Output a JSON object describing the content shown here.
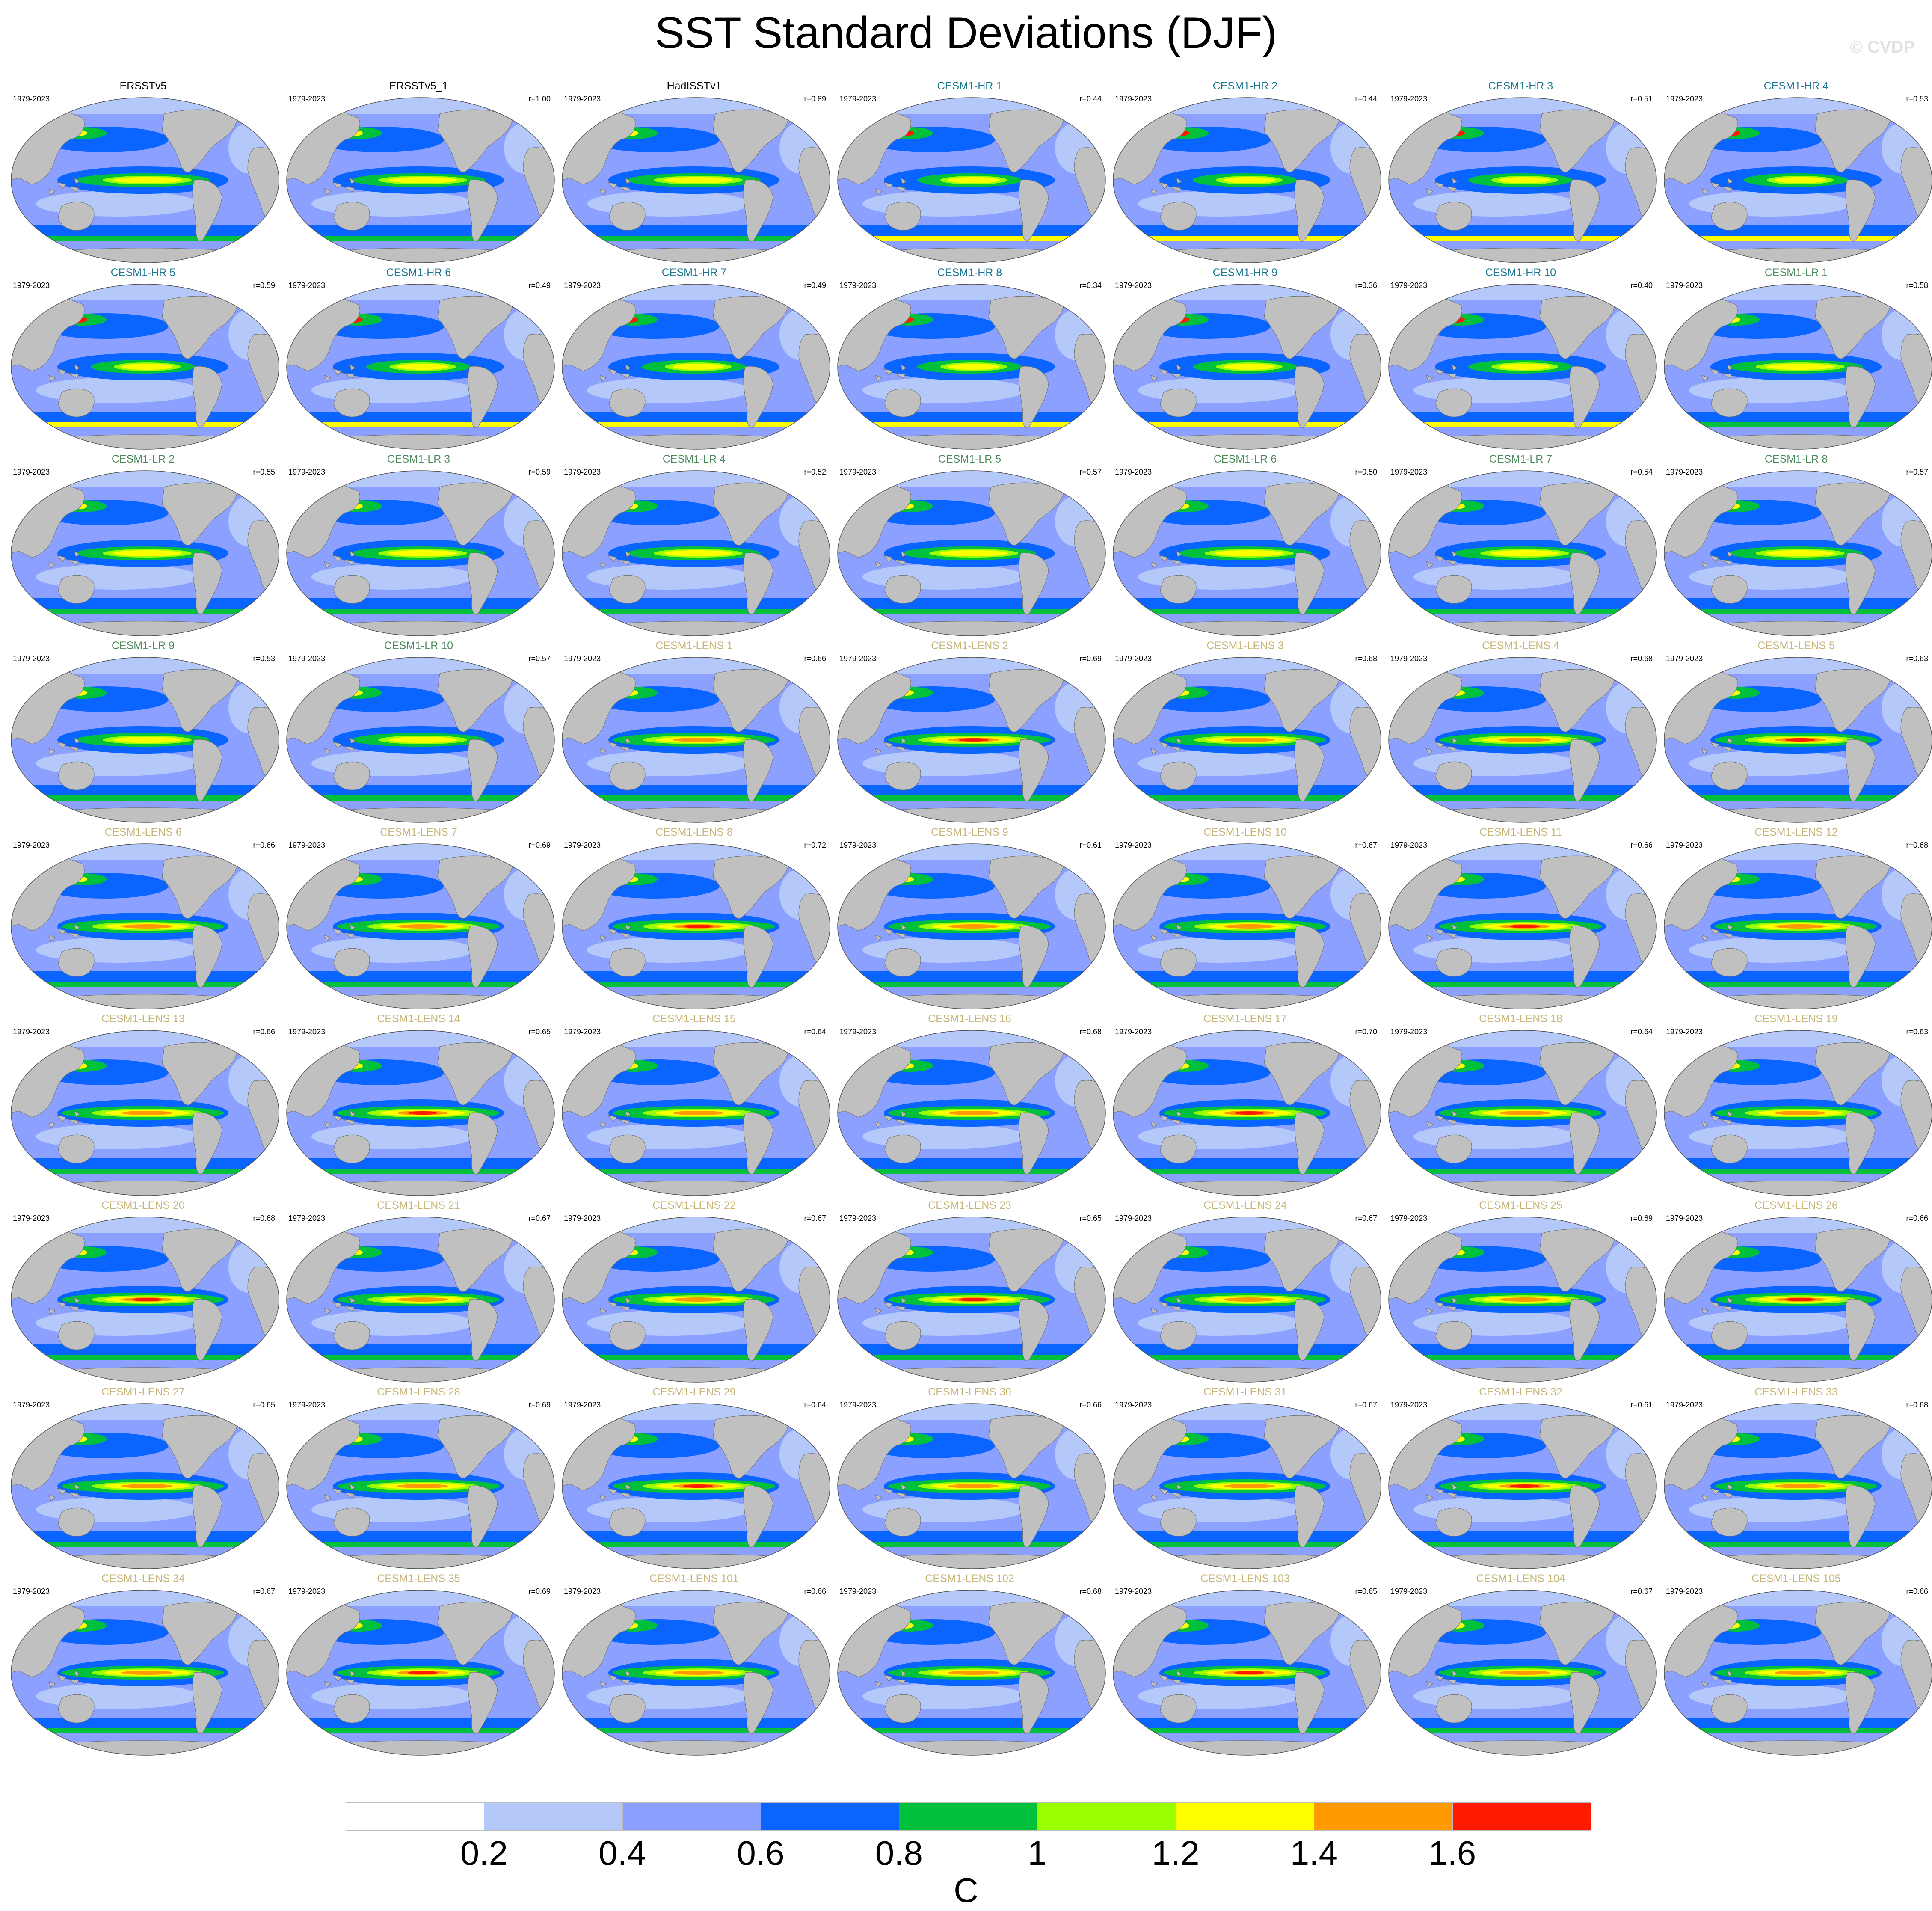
{
  "title": "SST Standard Deviations (DJF)",
  "watermark": "© CVDP",
  "period": "1979-2023",
  "title_colors": {
    "observations": "#000000",
    "CESM1-HR": "#1a7691",
    "CESM1-LR": "#4c8a5c",
    "CESM1-LENS": "#c7b577"
  },
  "panels": [
    {
      "title": "ERSSTv5",
      "group": "observations",
      "r": ""
    },
    {
      "title": "ERSSTv5_1",
      "group": "observations",
      "r": "r=1.00"
    },
    {
      "title": "HadISSTv1",
      "group": "observations",
      "r": "r=0.89"
    },
    {
      "title": "CESM1-HR 1",
      "group": "CESM1-HR",
      "r": "r=0.44"
    },
    {
      "title": "CESM1-HR 2",
      "group": "CESM1-HR",
      "r": "r=0.44"
    },
    {
      "title": "CESM1-HR 3",
      "group": "CESM1-HR",
      "r": "r=0.51"
    },
    {
      "title": "CESM1-HR 4",
      "group": "CESM1-HR",
      "r": "r=0.53"
    },
    {
      "title": "CESM1-HR 5",
      "group": "CESM1-HR",
      "r": "r=0.59"
    },
    {
      "title": "CESM1-HR 6",
      "group": "CESM1-HR",
      "r": "r=0.49"
    },
    {
      "title": "CESM1-HR 7",
      "group": "CESM1-HR",
      "r": "r=0.49"
    },
    {
      "title": "CESM1-HR 8",
      "group": "CESM1-HR",
      "r": "r=0.34"
    },
    {
      "title": "CESM1-HR 9",
      "group": "CESM1-HR",
      "r": "r=0.36"
    },
    {
      "title": "CESM1-HR 10",
      "group": "CESM1-HR",
      "r": "r=0.40"
    },
    {
      "title": "CESM1-LR 1",
      "group": "CESM1-LR",
      "r": "r=0.58"
    },
    {
      "title": "CESM1-LR 2",
      "group": "CESM1-LR",
      "r": "r=0.55"
    },
    {
      "title": "CESM1-LR 3",
      "group": "CESM1-LR",
      "r": "r=0.59"
    },
    {
      "title": "CESM1-LR 4",
      "group": "CESM1-LR",
      "r": "r=0.52"
    },
    {
      "title": "CESM1-LR 5",
      "group": "CESM1-LR",
      "r": "r=0.57"
    },
    {
      "title": "CESM1-LR 6",
      "group": "CESM1-LR",
      "r": "r=0.50"
    },
    {
      "title": "CESM1-LR 7",
      "group": "CESM1-LR",
      "r": "r=0.54"
    },
    {
      "title": "CESM1-LR 8",
      "group": "CESM1-LR",
      "r": "r=0.57"
    },
    {
      "title": "CESM1-LR 9",
      "group": "CESM1-LR",
      "r": "r=0.53"
    },
    {
      "title": "CESM1-LR 10",
      "group": "CESM1-LR",
      "r": "r=0.57"
    },
    {
      "title": "CESM1-LENS 1",
      "group": "CESM1-LENS",
      "r": "r=0.66"
    },
    {
      "title": "CESM1-LENS 2",
      "group": "CESM1-LENS",
      "r": "r=0.69"
    },
    {
      "title": "CESM1-LENS 3",
      "group": "CESM1-LENS",
      "r": "r=0.68"
    },
    {
      "title": "CESM1-LENS 4",
      "group": "CESM1-LENS",
      "r": "r=0.68"
    },
    {
      "title": "CESM1-LENS 5",
      "group": "CESM1-LENS",
      "r": "r=0.63"
    },
    {
      "title": "CESM1-LENS 6",
      "group": "CESM1-LENS",
      "r": "r=0.66"
    },
    {
      "title": "CESM1-LENS 7",
      "group": "CESM1-LENS",
      "r": "r=0.69"
    },
    {
      "title": "CESM1-LENS 8",
      "group": "CESM1-LENS",
      "r": "r=0.72"
    },
    {
      "title": "CESM1-LENS 9",
      "group": "CESM1-LENS",
      "r": "r=0.61"
    },
    {
      "title": "CESM1-LENS 10",
      "group": "CESM1-LENS",
      "r": "r=0.67"
    },
    {
      "title": "CESM1-LENS 11",
      "group": "CESM1-LENS",
      "r": "r=0.66"
    },
    {
      "title": "CESM1-LENS 12",
      "group": "CESM1-LENS",
      "r": "r=0.68"
    },
    {
      "title": "CESM1-LENS 13",
      "group": "CESM1-LENS",
      "r": "r=0.66"
    },
    {
      "title": "CESM1-LENS 14",
      "group": "CESM1-LENS",
      "r": "r=0.65"
    },
    {
      "title": "CESM1-LENS 15",
      "group": "CESM1-LENS",
      "r": "r=0.64"
    },
    {
      "title": "CESM1-LENS 16",
      "group": "CESM1-LENS",
      "r": "r=0.68"
    },
    {
      "title": "CESM1-LENS 17",
      "group": "CESM1-LENS",
      "r": "r=0.70"
    },
    {
      "title": "CESM1-LENS 18",
      "group": "CESM1-LENS",
      "r": "r=0.64"
    },
    {
      "title": "CESM1-LENS 19",
      "group": "CESM1-LENS",
      "r": "r=0.63"
    },
    {
      "title": "CESM1-LENS 20",
      "group": "CESM1-LENS",
      "r": "r=0.68"
    },
    {
      "title": "CESM1-LENS 21",
      "group": "CESM1-LENS",
      "r": "r=0.67"
    },
    {
      "title": "CESM1-LENS 22",
      "group": "CESM1-LENS",
      "r": "r=0.67"
    },
    {
      "title": "CESM1-LENS 23",
      "group": "CESM1-LENS",
      "r": "r=0.65"
    },
    {
      "title": "CESM1-LENS 24",
      "group": "CESM1-LENS",
      "r": "r=0.67"
    },
    {
      "title": "CESM1-LENS 25",
      "group": "CESM1-LENS",
      "r": "r=0.69"
    },
    {
      "title": "CESM1-LENS 26",
      "group": "CESM1-LENS",
      "r": "r=0.66"
    },
    {
      "title": "CESM1-LENS 27",
      "group": "CESM1-LENS",
      "r": "r=0.65"
    },
    {
      "title": "CESM1-LENS 28",
      "group": "CESM1-LENS",
      "r": "r=0.69"
    },
    {
      "title": "CESM1-LENS 29",
      "group": "CESM1-LENS",
      "r": "r=0.64"
    },
    {
      "title": "CESM1-LENS 30",
      "group": "CESM1-LENS",
      "r": "r=0.66"
    },
    {
      "title": "CESM1-LENS 31",
      "group": "CESM1-LENS",
      "r": "r=0.67"
    },
    {
      "title": "CESM1-LENS 32",
      "group": "CESM1-LENS",
      "r": "r=0.61"
    },
    {
      "title": "CESM1-LENS 33",
      "group": "CESM1-LENS",
      "r": "r=0.68"
    },
    {
      "title": "CESM1-LENS 34",
      "group": "CESM1-LENS",
      "r": "r=0.67"
    },
    {
      "title": "CESM1-LENS 35",
      "group": "CESM1-LENS",
      "r": "r=0.69"
    },
    {
      "title": "CESM1-LENS 101",
      "group": "CESM1-LENS",
      "r": "r=0.66"
    },
    {
      "title": "CESM1-LENS 102",
      "group": "CESM1-LENS",
      "r": "r=0.68"
    },
    {
      "title": "CESM1-LENS 103",
      "group": "CESM1-LENS",
      "r": "r=0.65"
    },
    {
      "title": "CESM1-LENS 104",
      "group": "CESM1-LENS",
      "r": "r=0.67"
    },
    {
      "title": "CESM1-LENS 105",
      "group": "CESM1-LENS",
      "r": "r=0.66"
    }
  ],
  "colorbar": {
    "units": "C",
    "colors": [
      "#ffffff",
      "#b4c8fa",
      "#8ca0ff",
      "#0a64ff",
      "#00c03c",
      "#99ff00",
      "#ffff00",
      "#ff9a00",
      "#ff1a00"
    ],
    "ticks": [
      "0.2",
      "0.4",
      "0.6",
      "0.8",
      "1",
      "1.2",
      "1.4",
      "1.6"
    ]
  },
  "map_colors": {
    "land": "#c0c0c0",
    "coast": "#6e6e6e"
  }
}
